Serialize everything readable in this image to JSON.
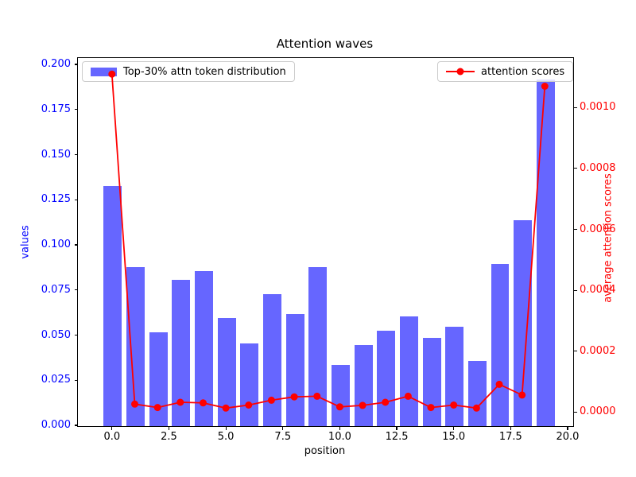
{
  "chart_data": {
    "type": "bar+line",
    "title": "Attention waves",
    "xlabel": "position",
    "grid": false,
    "bar_width": 0.8,
    "x": [
      0,
      1,
      2,
      3,
      4,
      5,
      6,
      7,
      8,
      9,
      10,
      11,
      12,
      13,
      14,
      15,
      16,
      17,
      18,
      19
    ],
    "series": [
      {
        "name": "Top-30% attn token distribution",
        "type": "bar",
        "axis": "left",
        "color": "rgba(0,0,255,0.6)",
        "color_hex": "#6666ff",
        "legend_position": "upper left",
        "values": [
          0.133,
          0.088,
          0.052,
          0.081,
          0.086,
          0.06,
          0.046,
          0.073,
          0.062,
          0.088,
          0.034,
          0.045,
          0.053,
          0.061,
          0.049,
          0.055,
          0.036,
          0.09,
          0.114,
          0.192
        ]
      },
      {
        "name": "attention scores",
        "type": "line",
        "axis": "right",
        "color": "#ff0000",
        "marker": "circle",
        "legend_position": "upper right",
        "values": [
          0.00111,
          2.6e-05,
          1.5e-05,
          3.2e-05,
          3e-05,
          1.3e-05,
          2.3e-05,
          3.9e-05,
          5e-05,
          5.2e-05,
          1.7e-05,
          2.2e-05,
          3.2e-05,
          5.2e-05,
          1.5e-05,
          2.3e-05,
          1.3e-05,
          9.1e-05,
          5.6e-05,
          0.00107
        ]
      }
    ],
    "axes": {
      "x": {
        "label": "position",
        "color": "#000000",
        "min": -1.53,
        "max": 20.21,
        "ticks": [
          0,
          2.5,
          5,
          7.5,
          10,
          12.5,
          15,
          17.5,
          20
        ],
        "tick_labels": [
          "0.0",
          "2.5",
          "5.0",
          "7.5",
          "10.0",
          "12.5",
          "15.0",
          "17.5",
          "20.0"
        ]
      },
      "y_left": {
        "label": "values",
        "color": "#0000ff",
        "min": 0,
        "max": 0.204,
        "ticks": [
          0,
          0.025,
          0.05,
          0.075,
          0.1,
          0.125,
          0.15,
          0.175,
          0.2
        ],
        "tick_labels": [
          "0.000",
          "0.025",
          "0.050",
          "0.075",
          "0.100",
          "0.125",
          "0.150",
          "0.175",
          "0.200"
        ]
      },
      "y_right": {
        "label": "average attention scores",
        "color": "#ff0000",
        "min": -4.36e-05,
        "max": 0.0011653,
        "ticks": [
          0,
          0.0002,
          0.0004,
          0.0006,
          0.0008,
          0.001
        ],
        "tick_labels": [
          "0.0000",
          "0.0002",
          "0.0004",
          "0.0006",
          "0.0008",
          "0.0010"
        ]
      }
    }
  }
}
